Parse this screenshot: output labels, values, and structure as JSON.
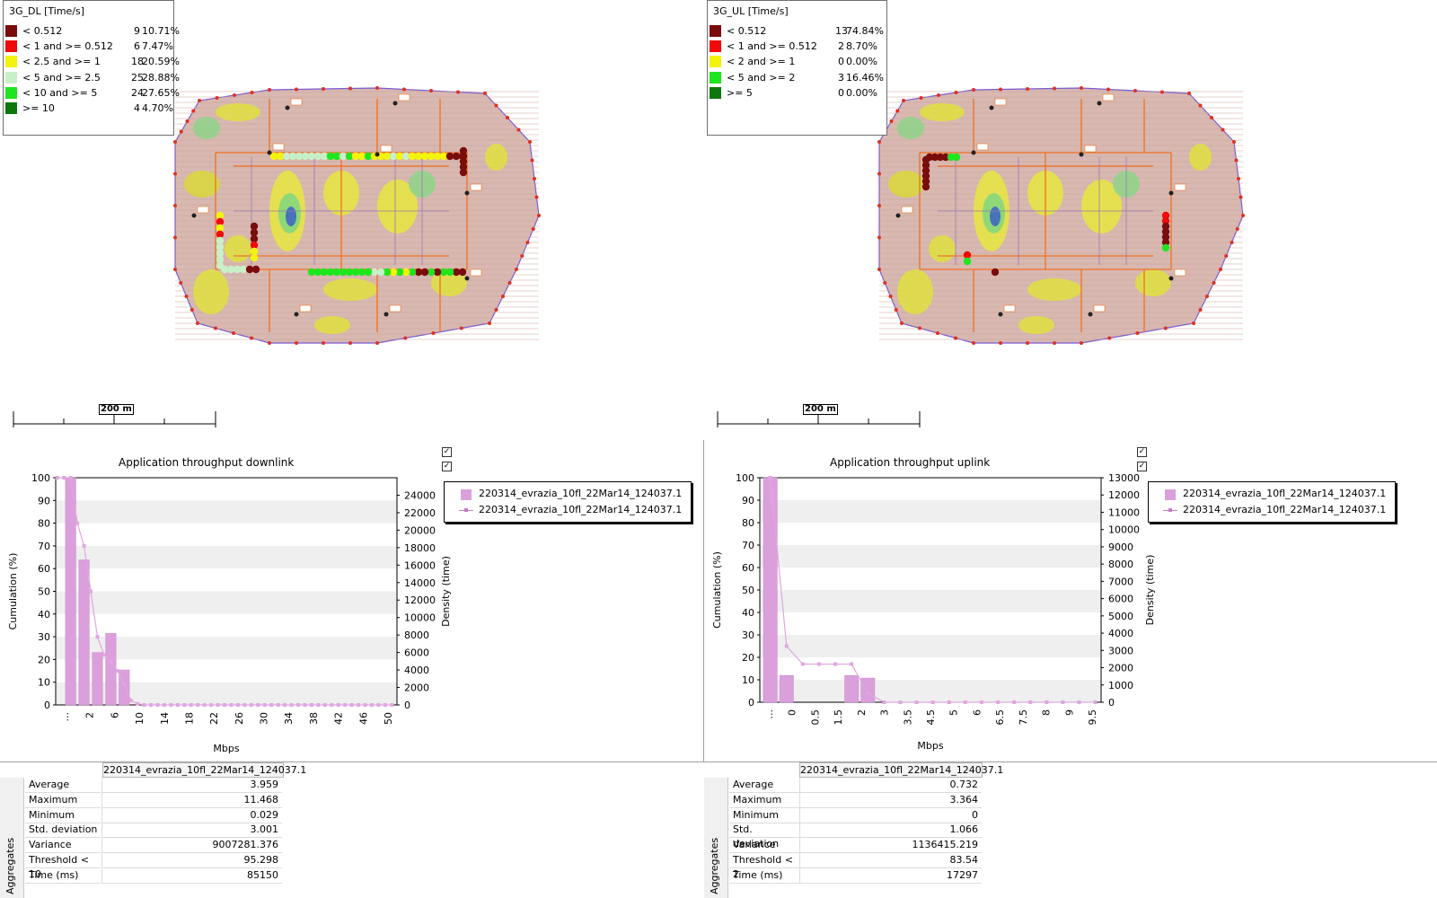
{
  "maps": {
    "left": {
      "title": "3G_DL [Time/s]",
      "legend": [
        {
          "label": "< 0.512",
          "count": "9",
          "pct": "10.71%",
          "color": "#7b0c0c"
        },
        {
          "label": "< 1 and >= 0.512",
          "count": "6",
          "pct": "7.47%",
          "color": "#f00a0a"
        },
        {
          "label": "< 2.5 and >= 1",
          "count": "18",
          "pct": "20.59%",
          "color": "#f4f40a"
        },
        {
          "label": "< 5 and >= 2.5",
          "count": "25",
          "pct": "28.88%",
          "color": "#c8f0c8"
        },
        {
          "label": "< 10 and >= 5",
          "count": "24",
          "pct": "27.65%",
          "color": "#1ee61e"
        },
        {
          "label": ">= 10",
          "count": "4",
          "pct": "4.70%",
          "color": "#0c780c"
        }
      ],
      "scale_label": "200 m"
    },
    "right": {
      "title": "3G_UL [Time/s]",
      "legend": [
        {
          "label": "< 0.512",
          "count": "13",
          "pct": "74.84%",
          "color": "#7b0c0c"
        },
        {
          "label": "< 1 and >= 0.512",
          "count": "2",
          "pct": "8.70%",
          "color": "#f00a0a"
        },
        {
          "label": "< 2 and >= 1",
          "count": "0",
          "pct": "0.00%",
          "color": "#f4f40a"
        },
        {
          "label": "< 5 and >= 2",
          "count": "3",
          "pct": "16.46%",
          "color": "#1ee61e"
        },
        {
          "label": ">= 5",
          "count": "0",
          "pct": "0.00%",
          "color": "#0c780c"
        }
      ],
      "scale_label": "200 m"
    }
  },
  "chart_data": [
    {
      "type": "bar",
      "title": "Application throughput downlink",
      "xlabel": "Mbps",
      "ylabel_left": "Cumulation (%)",
      "ylabel_right": "Density (time)",
      "x_ticks": [
        "...",
        "2",
        "6",
        "10",
        "14",
        "18",
        "22",
        "26",
        "30",
        "34",
        "38",
        "42",
        "46",
        "50"
      ],
      "y_left_ticks": [
        "0",
        "10",
        "20",
        "30",
        "40",
        "50",
        "60",
        "70",
        "80",
        "90",
        "100"
      ],
      "y_right_ticks": [
        "0",
        "2000",
        "4000",
        "6000",
        "8000",
        "10000",
        "12000",
        "14000",
        "16000",
        "18000",
        "20000",
        "22000",
        "24000"
      ],
      "ylim_left": [
        0,
        100
      ],
      "ylim_right": [
        0,
        26000
      ],
      "bins": [
        "0",
        "1",
        "2",
        "3",
        "4",
        "5",
        "6",
        "7",
        "8",
        "9",
        "10",
        "11",
        "12",
        "13",
        "14",
        "15",
        "16",
        "17",
        "18",
        "19",
        "20",
        "21",
        "22",
        "23",
        "24",
        "25",
        "26",
        "27",
        "28",
        "29",
        "30",
        "31",
        "32",
        "33",
        "34",
        "35",
        "36",
        "37",
        "38",
        "39",
        "40",
        "41",
        "42",
        "43",
        "44",
        "45",
        "46",
        "47",
        "48",
        "49",
        "50"
      ],
      "series": [
        {
          "name": "220314_evrazia_10fl_22Mar14_124037.1",
          "kind": "bar",
          "values": [
            0,
            0,
            26000,
            0,
            16600,
            0,
            6000,
            0,
            8200,
            0,
            4000,
            0,
            0,
            0,
            0,
            0,
            0,
            0,
            0,
            0,
            0,
            0,
            0,
            0,
            0,
            0,
            0,
            0,
            0,
            0,
            0,
            0,
            0,
            0,
            0,
            0,
            0,
            0,
            0,
            0,
            0,
            0,
            0,
            0,
            0,
            0,
            0,
            0,
            0,
            0,
            0
          ]
        },
        {
          "name": "220314_evrazia_10fl_22Mar14_124037.1",
          "kind": "line",
          "values": [
            100,
            100,
            100,
            80,
            70,
            50,
            30,
            22,
            19,
            15,
            9,
            2,
            0.5,
            0,
            0,
            0,
            0,
            0,
            0,
            0,
            0,
            0,
            0,
            0,
            0,
            0,
            0,
            0,
            0,
            0,
            0,
            0,
            0,
            0,
            0,
            0,
            0,
            0,
            0,
            0,
            0,
            0,
            0,
            0,
            0,
            0,
            0,
            0,
            0,
            0,
            0
          ]
        }
      ]
    },
    {
      "type": "bar",
      "title": "Application throughput uplink",
      "xlabel": "Mbps",
      "ylabel_left": "Cumulation (%)",
      "ylabel_right": "Density (time)",
      "x_ticks": [
        "...",
        "0",
        "0.5",
        "1.5",
        "2",
        "3",
        "3.5",
        "4.5",
        "5",
        "6",
        "6.5",
        "7.5",
        "8",
        "9",
        "9.5"
      ],
      "y_left_ticks": [
        "0",
        "10",
        "20",
        "30",
        "40",
        "50",
        "60",
        "70",
        "80",
        "90",
        "100"
      ],
      "y_right_ticks": [
        "0",
        "1000",
        "2000",
        "3000",
        "4000",
        "5000",
        "6000",
        "7000",
        "8000",
        "9000",
        "10000",
        "11000",
        "12000",
        "13000"
      ],
      "ylim_left": [
        0,
        100
      ],
      "ylim_right": [
        0,
        13000
      ],
      "bins": [
        "0",
        "0.5",
        "1",
        "1.5",
        "2",
        "2.5",
        "3",
        "3.5",
        "4",
        "4.5",
        "5",
        "5.5",
        "6",
        "6.5",
        "7",
        "7.5",
        "8",
        "8.5",
        "9",
        "9.5",
        "10"
      ],
      "series": [
        {
          "name": "220314_evrazia_10fl_22Mar14_124037.1",
          "kind": "bar",
          "values": [
            13000,
            1550,
            0,
            0,
            0,
            1550,
            1400,
            0,
            0,
            0,
            0,
            0,
            0,
            0,
            0,
            0,
            0,
            0,
            0,
            0,
            0
          ]
        },
        {
          "name": "220314_evrazia_10fl_22Mar14_124037.1",
          "kind": "line",
          "values": [
            100,
            25,
            17,
            17,
            17,
            17,
            4,
            0,
            0,
            0,
            0,
            0,
            0,
            0,
            0,
            0,
            0,
            0,
            0,
            0,
            0
          ]
        }
      ]
    }
  ],
  "tables": {
    "left": {
      "column_header": "220314_evrazia_10fl_22Mar14_124037.1",
      "group_label": "Aggregates",
      "rows": [
        {
          "label": "Average",
          "value": "3.959"
        },
        {
          "label": "Maximum",
          "value": "11.468"
        },
        {
          "label": "Minimum",
          "value": "0.029"
        },
        {
          "label": "Std. deviation",
          "value": "3.001"
        },
        {
          "label": "Variance",
          "value": "9007281.376"
        },
        {
          "label": "Threshold < 10",
          "value": "95.298"
        },
        {
          "label": "Time (ms)",
          "value": "85150"
        }
      ]
    },
    "right": {
      "column_header": "220314_evrazia_10fl_22Mar14_124037.1",
      "group_label": "Aggregates",
      "rows": [
        {
          "label": "Average",
          "value": "0.732"
        },
        {
          "label": "Maximum",
          "value": "3.364"
        },
        {
          "label": "Minimum",
          "value": "0"
        },
        {
          "label": "Std. deviation",
          "value": "1.066"
        },
        {
          "label": "Variance",
          "value": "1136415.219"
        },
        {
          "label": "Threshold < 2",
          "value": "83.54"
        },
        {
          "label": "Time (ms)",
          "value": "17297"
        }
      ]
    }
  },
  "checkboxes": [
    "checked",
    "checked"
  ]
}
